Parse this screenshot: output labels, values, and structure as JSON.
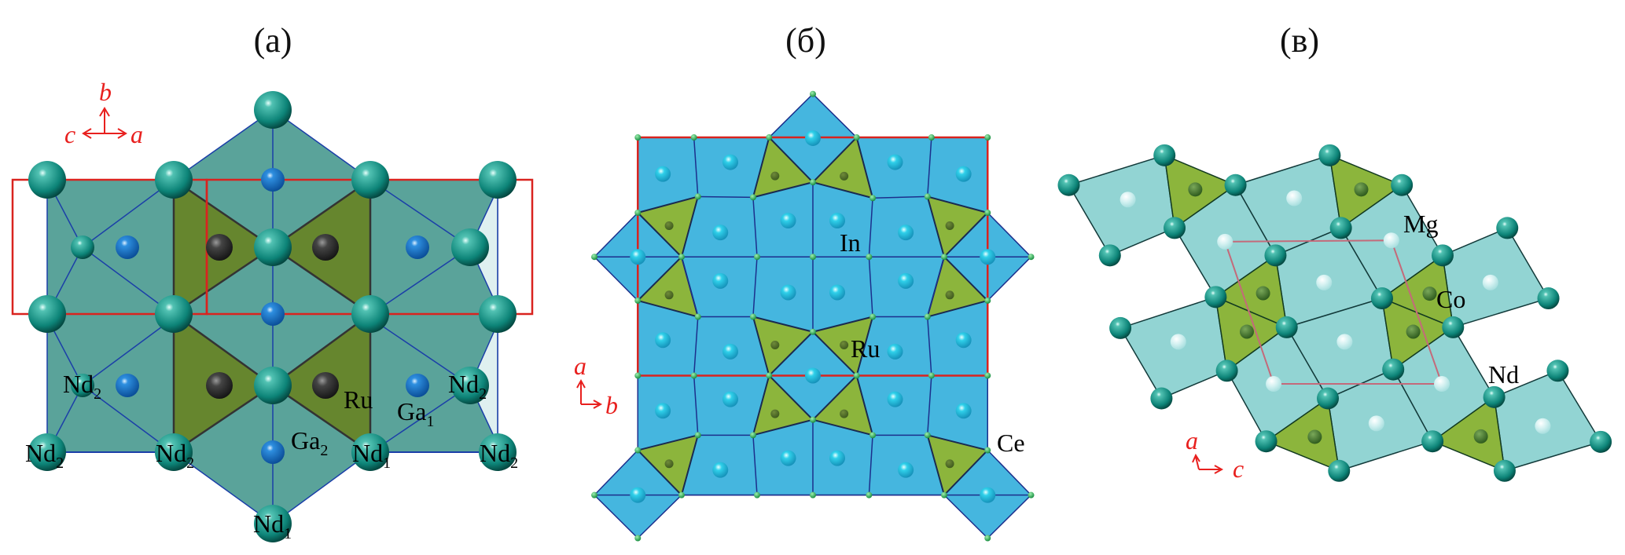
{
  "panels": {
    "a": {
      "title": "(a)",
      "axes": {
        "up": "b",
        "left": "c",
        "right": "a"
      },
      "labels": [
        {
          "el": "Nd",
          "sub": "2"
        },
        {
          "el": "Ru",
          "sub": ""
        },
        {
          "el": "Ga",
          "sub": "1"
        },
        {
          "el": "Nd",
          "sub": "2"
        },
        {
          "el": "Nd",
          "sub": "2"
        },
        {
          "el": "Nd",
          "sub": "2"
        },
        {
          "el": "Ga",
          "sub": "2"
        },
        {
          "el": "Nd",
          "sub": "1"
        },
        {
          "el": "Nd",
          "sub": "2"
        },
        {
          "el": "Nd",
          "sub": "1"
        }
      ]
    },
    "b": {
      "title": "(б)",
      "axes": {
        "up": "a",
        "right": "b"
      },
      "labels": [
        "In",
        "Ru",
        "Ce"
      ]
    },
    "c": {
      "title": "(в)",
      "axes": {
        "up": "a",
        "right": "c"
      },
      "labels": [
        "Mg",
        "Co",
        "Nd"
      ]
    }
  },
  "colors": {
    "unit_cell": "#d9231f",
    "axis": "#e8201e",
    "polyhedron_teal": "#5aa39a",
    "polyhedron_olive": "#66862e",
    "polyhedron_blue": "#45b6df",
    "polyhedron_green": "#8cb53c",
    "polyhedron_lightcyan": "#92d4d3",
    "edge": "#1c2f8c"
  }
}
